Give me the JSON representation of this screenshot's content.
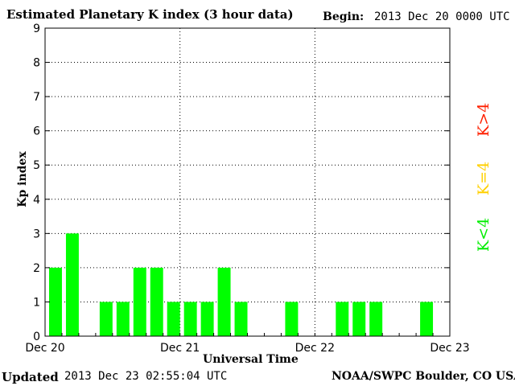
{
  "header": {
    "title": "Estimated Planetary K index (3 hour data)",
    "begin_label": "Begin:",
    "begin_value": "2013 Dec 20 0000 UTC"
  },
  "footer": {
    "updated_label": "Updated",
    "updated_value": "2013 Dec 23 02:55:04 UTC",
    "credit": "NOAA/SWPC Boulder, CO USA"
  },
  "legend": {
    "high": "K>4",
    "mid": "K=4",
    "low": "K<4",
    "colors": {
      "high": "#ff2000",
      "mid": "#ffd000",
      "low": "#00ee00"
    }
  },
  "chart_data": {
    "type": "bar",
    "title": "Estimated Planetary K index (3 hour data)",
    "xlabel": "Universal Time",
    "ylabel": "Kp index",
    "ylim": [
      0,
      9
    ],
    "yticks": [
      0,
      1,
      2,
      3,
      4,
      5,
      6,
      7,
      8,
      9
    ],
    "xticks": [
      "Dec 20",
      "Dec 21",
      "Dec 22",
      "Dec 23"
    ],
    "interval_hours": 3,
    "grid": true,
    "bar_color": "#00ff00",
    "values": [
      2,
      3,
      0,
      1,
      1,
      2,
      2,
      1,
      1,
      1,
      2,
      1,
      0,
      0,
      1,
      0,
      0,
      1,
      1,
      1,
      0,
      0,
      1,
      0
    ]
  }
}
